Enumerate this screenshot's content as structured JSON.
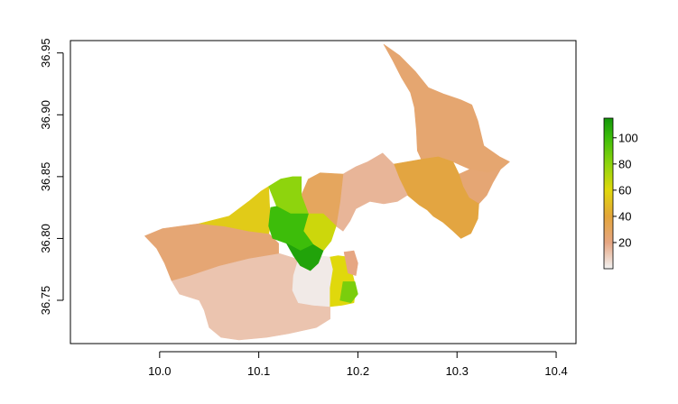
{
  "chart_data": {
    "type": "heatmap",
    "title": "",
    "xlabel": "",
    "ylabel": "",
    "xlim": [
      9.91,
      10.42
    ],
    "ylim": [
      36.715,
      36.96
    ],
    "x_ticks": [
      10.0,
      10.1,
      10.2,
      10.3,
      10.4
    ],
    "x_tick_labels": [
      "10.0",
      "10.1",
      "10.2",
      "10.3",
      "10.4"
    ],
    "y_ticks": [
      36.75,
      36.8,
      36.85,
      36.9,
      36.95
    ],
    "y_tick_labels": [
      "36.75",
      "36.80",
      "36.85",
      "36.90",
      "36.95"
    ],
    "legend": {
      "type": "color-bar",
      "placement": "right",
      "range": [
        0,
        115
      ],
      "ticks": [
        20,
        40,
        60,
        80,
        100
      ],
      "tick_labels": [
        "20",
        "40",
        "60",
        "80",
        "100"
      ],
      "stops": [
        {
          "value": 0,
          "color": "#f2f2f2"
        },
        {
          "value": 20,
          "color": "#e6a682"
        },
        {
          "value": 40,
          "color": "#e3a53a"
        },
        {
          "value": 60,
          "color": "#e0d80c"
        },
        {
          "value": 80,
          "color": "#8ed40d"
        },
        {
          "value": 100,
          "color": "#3dbd0a"
        },
        {
          "value": 115,
          "color": "#13960a"
        }
      ]
    },
    "regions": [
      {
        "value": 25,
        "lonlat": [
          [
            10.226,
            36.957
          ],
          [
            10.242,
            36.948
          ],
          [
            10.258,
            36.935
          ],
          [
            10.271,
            36.922
          ],
          [
            10.286,
            36.917
          ],
          [
            10.304,
            36.912
          ],
          [
            10.315,
            36.908
          ],
          [
            10.321,
            36.895
          ],
          [
            10.327,
            36.875
          ],
          [
            10.343,
            36.866
          ],
          [
            10.353,
            36.862
          ],
          [
            10.344,
            36.856
          ],
          [
            10.331,
            36.853
          ],
          [
            10.313,
            36.856
          ],
          [
            10.296,
            36.862
          ],
          [
            10.281,
            36.866
          ],
          [
            10.264,
            36.864
          ],
          [
            10.26,
            36.871
          ],
          [
            10.259,
            36.888
          ],
          [
            10.257,
            36.906
          ],
          [
            10.253,
            36.918
          ],
          [
            10.244,
            36.93
          ],
          [
            10.235,
            36.944
          ]
        ]
      },
      {
        "value": 24,
        "lonlat": [
          [
            10.313,
            36.856
          ],
          [
            10.331,
            36.853
          ],
          [
            10.344,
            36.856
          ],
          [
            10.336,
            36.845
          ],
          [
            10.33,
            36.835
          ],
          [
            10.322,
            36.828
          ],
          [
            10.312,
            36.833
          ],
          [
            10.306,
            36.842
          ],
          [
            10.302,
            36.852
          ]
        ]
      },
      {
        "value": 38,
        "lonlat": [
          [
            10.236,
            36.86
          ],
          [
            10.264,
            36.864
          ],
          [
            10.281,
            36.866
          ],
          [
            10.296,
            36.862
          ],
          [
            10.302,
            36.852
          ],
          [
            10.306,
            36.842
          ],
          [
            10.312,
            36.833
          ],
          [
            10.322,
            36.828
          ],
          [
            10.321,
            36.816
          ],
          [
            10.314,
            36.804
          ],
          [
            10.304,
            36.8
          ],
          [
            10.296,
            36.806
          ],
          [
            10.286,
            36.813
          ],
          [
            10.276,
            36.818
          ],
          [
            10.27,
            36.823
          ],
          [
            10.262,
            36.827
          ],
          [
            10.25,
            36.835
          ],
          [
            10.242,
            36.848
          ]
        ]
      },
      {
        "value": 16,
        "lonlat": [
          [
            10.185,
            36.852
          ],
          [
            10.198,
            36.858
          ],
          [
            10.21,
            36.862
          ],
          [
            10.225,
            36.869
          ],
          [
            10.236,
            36.86
          ],
          [
            10.242,
            36.848
          ],
          [
            10.25,
            36.835
          ],
          [
            10.24,
            36.83
          ],
          [
            10.226,
            36.828
          ],
          [
            10.212,
            36.83
          ],
          [
            10.198,
            36.824
          ],
          [
            10.192,
            36.814
          ],
          [
            10.185,
            36.806
          ],
          [
            10.178,
            36.81
          ],
          [
            10.182,
            36.83
          ]
        ]
      },
      {
        "value": 30,
        "lonlat": [
          [
            10.162,
            36.853
          ],
          [
            10.185,
            36.852
          ],
          [
            10.182,
            36.83
          ],
          [
            10.178,
            36.81
          ],
          [
            10.165,
            36.82
          ],
          [
            10.15,
            36.82
          ],
          [
            10.143,
            36.835
          ],
          [
            10.15,
            36.848
          ]
        ]
      },
      {
        "value": 12,
        "lonlat": [
          [
            10.012,
            36.766
          ],
          [
            10.03,
            36.77
          ],
          [
            10.06,
            36.778
          ],
          [
            10.09,
            36.784
          ],
          [
            10.12,
            36.788
          ],
          [
            10.14,
            36.783
          ],
          [
            10.135,
            36.77
          ],
          [
            10.134,
            36.758
          ],
          [
            10.14,
            36.748
          ],
          [
            10.155,
            36.746
          ],
          [
            10.172,
            36.745
          ],
          [
            10.172,
            36.735
          ],
          [
            10.158,
            36.728
          ],
          [
            10.13,
            36.723
          ],
          [
            10.108,
            36.72
          ],
          [
            10.08,
            36.718
          ],
          [
            10.062,
            36.72
          ],
          [
            10.05,
            36.728
          ],
          [
            10.045,
            36.742
          ],
          [
            10.04,
            36.75
          ],
          [
            10.02,
            36.755
          ]
        ]
      },
      {
        "value": 24,
        "lonlat": [
          [
            9.985,
            36.802
          ],
          [
            10.003,
            36.808
          ],
          [
            10.022,
            36.81
          ],
          [
            10.04,
            36.812
          ],
          [
            10.065,
            36.81
          ],
          [
            10.09,
            36.806
          ],
          [
            10.11,
            36.804
          ],
          [
            10.12,
            36.796
          ],
          [
            10.12,
            36.788
          ],
          [
            10.09,
            36.784
          ],
          [
            10.06,
            36.778
          ],
          [
            10.03,
            36.77
          ],
          [
            10.012,
            36.766
          ],
          [
            10.005,
            36.78
          ],
          [
            9.997,
            36.792
          ]
        ]
      },
      {
        "value": 55,
        "lonlat": [
          [
            10.04,
            36.812
          ],
          [
            10.07,
            36.818
          ],
          [
            10.09,
            36.83
          ],
          [
            10.102,
            36.838
          ],
          [
            10.11,
            36.842
          ],
          [
            10.111,
            36.825
          ],
          [
            10.113,
            36.813
          ],
          [
            10.11,
            36.804
          ],
          [
            10.09,
            36.806
          ],
          [
            10.065,
            36.81
          ]
        ]
      },
      {
        "value": 2,
        "lonlat": [
          [
            10.14,
            36.783
          ],
          [
            10.16,
            36.786
          ],
          [
            10.172,
            36.785
          ],
          [
            10.175,
            36.775
          ],
          [
            10.172,
            36.76
          ],
          [
            10.172,
            36.745
          ],
          [
            10.155,
            36.746
          ],
          [
            10.14,
            36.748
          ],
          [
            10.134,
            36.758
          ],
          [
            10.135,
            36.77
          ]
        ]
      },
      {
        "value": 60,
        "lonlat": [
          [
            10.172,
            36.785
          ],
          [
            10.18,
            36.786
          ],
          [
            10.19,
            36.785
          ],
          [
            10.195,
            36.77
          ],
          [
            10.198,
            36.76
          ],
          [
            10.196,
            36.748
          ],
          [
            10.184,
            36.746
          ],
          [
            10.172,
            36.745
          ],
          [
            10.172,
            36.76
          ],
          [
            10.175,
            36.775
          ]
        ]
      },
      {
        "value": 85,
        "lonlat": [
          [
            10.185,
            36.765
          ],
          [
            10.197,
            36.765
          ],
          [
            10.2,
            36.755
          ],
          [
            10.193,
            36.748
          ],
          [
            10.182,
            36.75
          ]
        ]
      },
      {
        "value": 80,
        "lonlat": [
          [
            10.11,
            36.842
          ],
          [
            10.122,
            36.848
          ],
          [
            10.134,
            36.85
          ],
          [
            10.143,
            36.85
          ],
          [
            10.143,
            36.835
          ],
          [
            10.15,
            36.82
          ],
          [
            10.132,
            36.82
          ],
          [
            10.118,
            36.826
          ]
        ]
      },
      {
        "value": 65,
        "lonlat": [
          [
            10.15,
            36.82
          ],
          [
            10.165,
            36.82
          ],
          [
            10.178,
            36.81
          ],
          [
            10.173,
            36.798
          ],
          [
            10.165,
            36.79
          ],
          [
            10.155,
            36.795
          ],
          [
            10.145,
            36.806
          ]
        ]
      },
      {
        "value": 100,
        "lonlat": [
          [
            10.112,
            36.825
          ],
          [
            10.118,
            36.826
          ],
          [
            10.132,
            36.82
          ],
          [
            10.15,
            36.82
          ],
          [
            10.145,
            36.806
          ],
          [
            10.155,
            36.795
          ],
          [
            10.142,
            36.79
          ],
          [
            10.128,
            36.796
          ],
          [
            10.114,
            36.8
          ],
          [
            10.11,
            36.81
          ]
        ]
      },
      {
        "value": 110,
        "lonlat": [
          [
            10.128,
            36.796
          ],
          [
            10.142,
            36.79
          ],
          [
            10.155,
            36.795
          ],
          [
            10.165,
            36.79
          ],
          [
            10.16,
            36.78
          ],
          [
            10.152,
            36.774
          ],
          [
            10.142,
            36.778
          ],
          [
            10.135,
            36.786
          ]
        ]
      },
      {
        "value": 20,
        "lonlat": [
          [
            10.186,
            36.789
          ],
          [
            10.196,
            36.79
          ],
          [
            10.2,
            36.78
          ],
          [
            10.198,
            36.77
          ],
          [
            10.19,
            36.772
          ]
        ]
      }
    ]
  }
}
